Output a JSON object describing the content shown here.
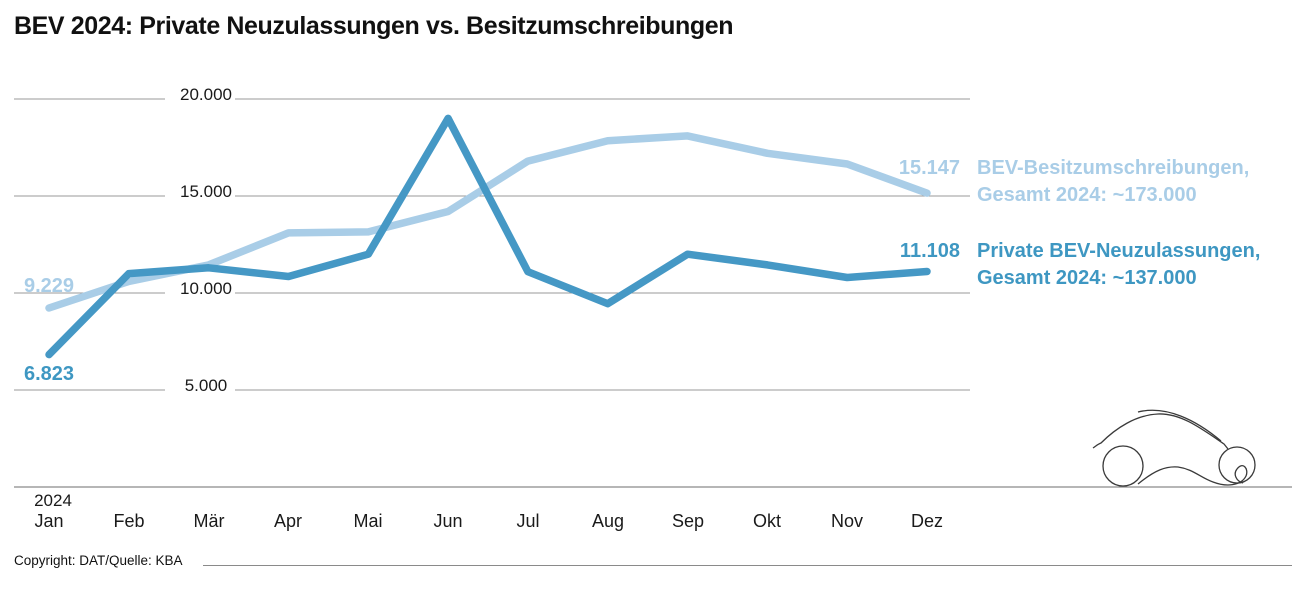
{
  "title": "BEV 2024: Private Neuzulassungen vs. Besitzumschreibungen",
  "copyright": "Copyright: DAT/Quelle: KBA",
  "chart_data": {
    "type": "line",
    "x_axis_year": "2024",
    "categories": [
      "Jan",
      "Feb",
      "Mär",
      "Apr",
      "Mai",
      "Jun",
      "Jul",
      "Aug",
      "Sep",
      "Okt",
      "Nov",
      "Dez"
    ],
    "y_ticks": [
      {
        "value": 20000,
        "label": "20.000"
      },
      {
        "value": 15000,
        "label": "15.000"
      },
      {
        "value": 10000,
        "label": "10.000"
      },
      {
        "value": 5000,
        "label": "5.000"
      }
    ],
    "ylim": [
      0,
      20000
    ],
    "grid": "horizontal",
    "legend_position": "right",
    "series": [
      {
        "name": "BEV-Besitzumschreibungen",
        "color": "#a9cde7",
        "values": [
          9229,
          10600,
          11450,
          13100,
          13150,
          14200,
          16800,
          17850,
          18100,
          17200,
          16650,
          15147
        ],
        "start_label": "9.229",
        "end_label": "15.147",
        "legend_line1": "BEV-Besitzumschreibungen,",
        "legend_line2": "Gesamt 2024: ~173.000"
      },
      {
        "name": "Private BEV-Neuzulassungen",
        "color": "#4598c5",
        "values": [
          6823,
          11000,
          11300,
          10850,
          12000,
          19000,
          11100,
          9450,
          12000,
          11450,
          10800,
          11108
        ],
        "start_label": "6.823",
        "end_label": "11.108",
        "legend_line1": "Private BEV-Neuzulassungen,",
        "legend_line2": "Gesamt 2024: ~137.000"
      }
    ]
  }
}
